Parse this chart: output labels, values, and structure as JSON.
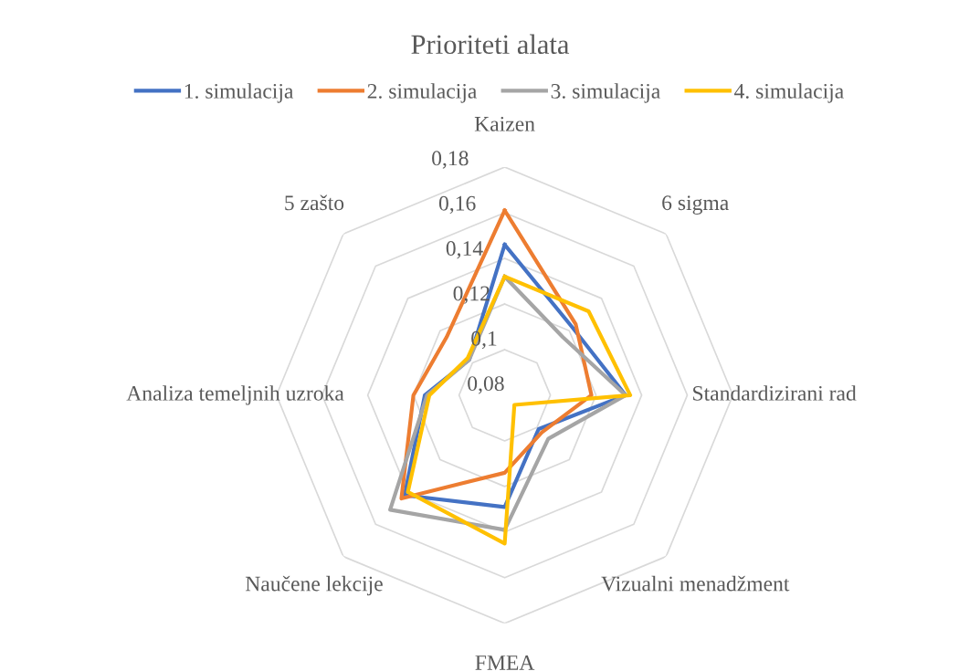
{
  "chart_data": {
    "type": "radar",
    "title": "Prioriteti alata",
    "categories": [
      "Kaizen",
      "6 sigma",
      "Standardizirani rad",
      "Vizualni menadžment",
      "FMEA",
      "Naučene lekcije",
      "Analiza temeljnih uzroka",
      "5 zašto"
    ],
    "series": [
      {
        "name": "1. simulacija",
        "color": "#4472c4",
        "values": [
          0.146,
          0.122,
          0.133,
          0.101,
          0.129,
          0.142,
          0.115,
          0.102
        ]
      },
      {
        "name": "2. simulacija",
        "color": "#ed7d31",
        "values": [
          0.161,
          0.124,
          0.118,
          0.103,
          0.114,
          0.144,
          0.12,
          0.116
        ]
      },
      {
        "name": "3. simulacija",
        "color": "#a5a5a5",
        "values": [
          0.132,
          0.116,
          0.133,
          0.107,
          0.139,
          0.151,
          0.114,
          0.102
        ]
      },
      {
        "name": "4. simulacija",
        "color": "#ffc000",
        "values": [
          0.132,
          0.132,
          0.135,
          0.086,
          0.145,
          0.14,
          0.113,
          0.103
        ]
      }
    ],
    "ylim": [
      0.08,
      0.18
    ],
    "yticks": [
      {
        "value": 0.08,
        "label": "0,08"
      },
      {
        "value": 0.1,
        "label": "0,1"
      },
      {
        "value": 0.12,
        "label": "0,12"
      },
      {
        "value": 0.14,
        "label": "0,14"
      },
      {
        "value": 0.16,
        "label": "0,16"
      },
      {
        "value": 0.18,
        "label": "0,18"
      }
    ],
    "grid": true,
    "legend": "top",
    "marker": "none",
    "line_style": "solid"
  }
}
